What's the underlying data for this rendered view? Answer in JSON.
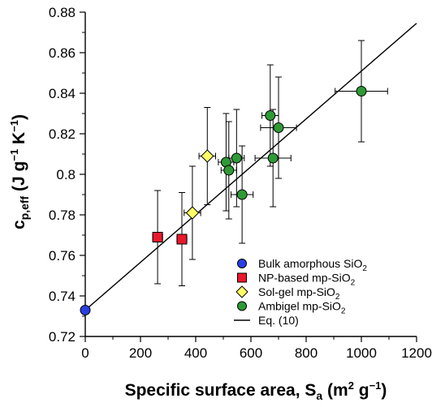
{
  "chart_data": {
    "type": "scatter",
    "xlabel": "Specific surface area, S",
    "xlabel_sub": "a",
    "xlabel_unit_open": " (m",
    "xlabel_unit_sup1": "2",
    "xlabel_unit_mid": " g",
    "xlabel_unit_sup2": "−1",
    "xlabel_unit_close": ")",
    "ylabel": "c",
    "ylabel_sub": "p,eff",
    "ylabel_unit_open": " (J g",
    "ylabel_unit_sup1": "−1",
    "ylabel_unit_mid": " K",
    "ylabel_unit_sup2": "−1",
    "ylabel_unit_close": ")",
    "xlim": [
      0,
      1200
    ],
    "ylim": [
      0.72,
      0.88
    ],
    "xticks": [
      0,
      200,
      400,
      600,
      800,
      1000,
      1200
    ],
    "yticks": [
      0.72,
      0.74,
      0.76,
      0.78,
      0.8,
      0.82,
      0.84,
      0.86,
      0.88
    ],
    "xtick_labels": [
      "0",
      "200",
      "400",
      "600",
      "800",
      "1000",
      "1200"
    ],
    "ytick_labels": [
      "0.72",
      "0.74",
      "0.76",
      "0.78",
      "0.8",
      "0.82",
      "0.84",
      "0.86",
      "0.88"
    ],
    "legend_position": "bottom-right",
    "series": [
      {
        "name": "Bulk amorphous SiO",
        "name_sub": "2",
        "marker": "circle",
        "color": "#2b3fe0",
        "points": [
          {
            "x": 0,
            "y": 0.733,
            "xerr": 0,
            "yerr": 0
          }
        ]
      },
      {
        "name": "NP-based mp-SiO",
        "name_sub": "2",
        "marker": "square",
        "color": "#e8192c",
        "points": [
          {
            "x": 262,
            "y": 0.769,
            "xerr": 18,
            "yerr": 0.023
          },
          {
            "x": 350,
            "y": 0.768,
            "xerr": 18,
            "yerr": 0.023
          }
        ]
      },
      {
        "name": "Sol-gel mp-SiO",
        "name_sub": "2",
        "marker": "diamond",
        "color": "#ffff66",
        "points": [
          {
            "x": 388,
            "y": 0.781,
            "xerr": 30,
            "yerr": 0.023
          },
          {
            "x": 442,
            "y": 0.809,
            "xerr": 30,
            "yerr": 0.024
          }
        ]
      },
      {
        "name": "Ambigel mp-SiO",
        "name_sub": "2",
        "marker": "circle",
        "color": "#2e9a36",
        "points": [
          {
            "x": 510,
            "y": 0.806,
            "xerr": 28,
            "yerr": 0.024
          },
          {
            "x": 520,
            "y": 0.802,
            "xerr": 28,
            "yerr": 0.024
          },
          {
            "x": 548,
            "y": 0.808,
            "xerr": 28,
            "yerr": 0.024
          },
          {
            "x": 568,
            "y": 0.79,
            "xerr": 40,
            "yerr": 0.024
          },
          {
            "x": 670,
            "y": 0.829,
            "xerr": 30,
            "yerr": 0.025
          },
          {
            "x": 680,
            "y": 0.808,
            "xerr": 65,
            "yerr": 0.024
          },
          {
            "x": 700,
            "y": 0.823,
            "xerr": 65,
            "yerr": 0.025
          },
          {
            "x": 1000,
            "y": 0.841,
            "xerr": 95,
            "yerr": 0.025
          }
        ]
      },
      {
        "name": "Eq. (10)",
        "marker": "line",
        "color": "#000000",
        "points": [
          {
            "x": 0,
            "y": 0.733
          },
          {
            "x": 1200,
            "y": 0.8745
          }
        ]
      }
    ]
  }
}
